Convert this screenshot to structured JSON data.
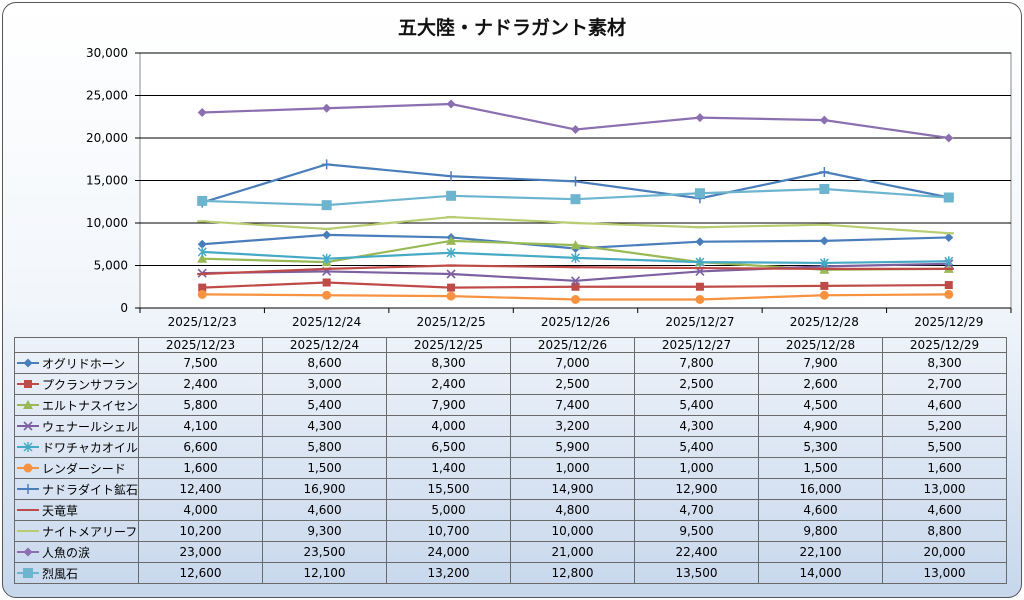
{
  "chart_data": {
    "type": "line",
    "title": "五大陸・ナドラガント素材",
    "ylim": [
      0,
      30000
    ],
    "yticks": [
      "0",
      "5,000",
      "10,000",
      "15,000",
      "20,000",
      "25,000",
      "30,000"
    ],
    "categories": [
      "2025/12/23",
      "2025/12/24",
      "2025/12/25",
      "2025/12/26",
      "2025/12/27",
      "2025/12/28",
      "2025/12/29"
    ],
    "grid": true,
    "legend": "data-table",
    "series": [
      {
        "name": "オグリドホーン",
        "values": [
          7500,
          8600,
          8300,
          7000,
          7800,
          7900,
          8300
        ],
        "labels": [
          "7,500",
          "8,600",
          "8,300",
          "7,000",
          "7,800",
          "7,900",
          "8,300"
        ],
        "color": "#4a7ebb",
        "marker": "diamond"
      },
      {
        "name": "プクランサフラン",
        "values": [
          2400,
          3000,
          2400,
          2500,
          2500,
          2600,
          2700
        ],
        "labels": [
          "2,400",
          "3,000",
          "2,400",
          "2,500",
          "2,500",
          "2,600",
          "2,700"
        ],
        "color": "#be4b48",
        "marker": "square"
      },
      {
        "name": "エルトナスイセン",
        "values": [
          5800,
          5400,
          7900,
          7400,
          5400,
          4500,
          4600
        ],
        "labels": [
          "5,800",
          "5,400",
          "7,900",
          "7,400",
          "5,400",
          "4,500",
          "4,600"
        ],
        "color": "#98b954",
        "marker": "triangle"
      },
      {
        "name": "ウェナールシェル",
        "values": [
          4100,
          4300,
          4000,
          3200,
          4300,
          4900,
          5200
        ],
        "labels": [
          "4,100",
          "4,300",
          "4,000",
          "3,200",
          "4,300",
          "4,900",
          "5,200"
        ],
        "color": "#7d60a0",
        "marker": "x"
      },
      {
        "name": "ドワチャカオイル",
        "values": [
          6600,
          5800,
          6500,
          5900,
          5400,
          5300,
          5500
        ],
        "labels": [
          "6,600",
          "5,800",
          "6,500",
          "5,900",
          "5,400",
          "5,300",
          "5,500"
        ],
        "color": "#46aac5",
        "marker": "star"
      },
      {
        "name": "レンダーシード",
        "values": [
          1600,
          1500,
          1400,
          1000,
          1000,
          1500,
          1600
        ],
        "labels": [
          "1,600",
          "1,500",
          "1,400",
          "1,000",
          "1,000",
          "1,500",
          "1,600"
        ],
        "color": "#f69240",
        "marker": "circle"
      },
      {
        "name": "ナドラダイト鉱石",
        "values": [
          12400,
          16900,
          15500,
          14900,
          12900,
          16000,
          13000
        ],
        "labels": [
          "12,400",
          "16,900",
          "15,500",
          "14,900",
          "12,900",
          "16,000",
          "13,000"
        ],
        "color": "#4a7ebb",
        "marker": "plus"
      },
      {
        "name": "天竜草",
        "values": [
          4000,
          4600,
          5000,
          4800,
          4700,
          4600,
          4600
        ],
        "labels": [
          "4,000",
          "4,600",
          "5,000",
          "4,800",
          "4,700",
          "4,600",
          "4,600"
        ],
        "color": "#be4b48",
        "marker": "dash"
      },
      {
        "name": "ナイトメアリーフ",
        "values": [
          10200,
          9300,
          10700,
          10000,
          9500,
          9800,
          8800
        ],
        "labels": [
          "10,200",
          "9,300",
          "10,700",
          "10,000",
          "9,500",
          "9,800",
          "8,800"
        ],
        "color": "#b8cc72",
        "marker": "dash"
      },
      {
        "name": "人魚の涙",
        "values": [
          23000,
          23500,
          24000,
          21000,
          22400,
          22100,
          20000
        ],
        "labels": [
          "23,000",
          "23,500",
          "24,000",
          "21,000",
          "22,400",
          "22,100",
          "20,000"
        ],
        "color": "#8c6fb0",
        "marker": "diamond"
      },
      {
        "name": "烈風石",
        "values": [
          12600,
          12100,
          13200,
          12800,
          13500,
          14000,
          13000
        ],
        "labels": [
          "12,600",
          "12,100",
          "13,200",
          "12,800",
          "13,500",
          "14,000",
          "13,000"
        ],
        "color": "#6db5cf",
        "marker": "bigsquare"
      }
    ]
  }
}
